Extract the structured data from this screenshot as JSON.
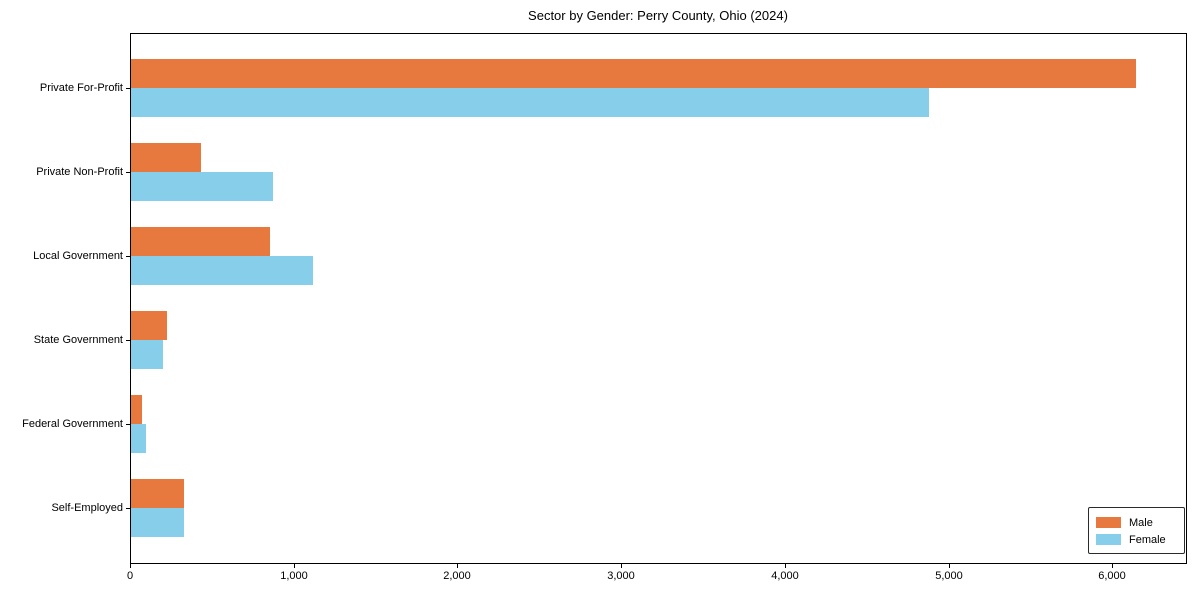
{
  "chart_data": {
    "type": "bar",
    "orientation": "horizontal",
    "title": "Sector by Gender: Perry County, Ohio (2024)",
    "xlabel": "",
    "ylabel": "",
    "categories": [
      "Private For-Profit",
      "Private Non-Profit",
      "Local Government",
      "State Government",
      "Federal Government",
      "Self-Employed"
    ],
    "series": [
      {
        "name": "Male",
        "color": "#e8793e",
        "values": [
          6140,
          425,
          850,
          220,
          70,
          325
        ]
      },
      {
        "name": "Female",
        "color": "#87ceeb",
        "values": [
          4875,
          865,
          1110,
          195,
          90,
          325
        ]
      }
    ],
    "xlim": [
      0,
      6450
    ],
    "x_ticks": [
      0,
      1000,
      2000,
      3000,
      4000,
      5000,
      6000
    ],
    "x_tick_labels": [
      "0",
      "1,000",
      "2,000",
      "3,000",
      "4,000",
      "5,000",
      "6,000"
    ],
    "grid": false,
    "legend": {
      "position": "lower right",
      "entries": [
        {
          "label": "Male",
          "color": "#e8793e"
        },
        {
          "label": "Female",
          "color": "#87ceeb"
        }
      ]
    },
    "colors": {
      "plot_border": "#000000",
      "background": "#ffffff",
      "text": "#000000"
    }
  }
}
